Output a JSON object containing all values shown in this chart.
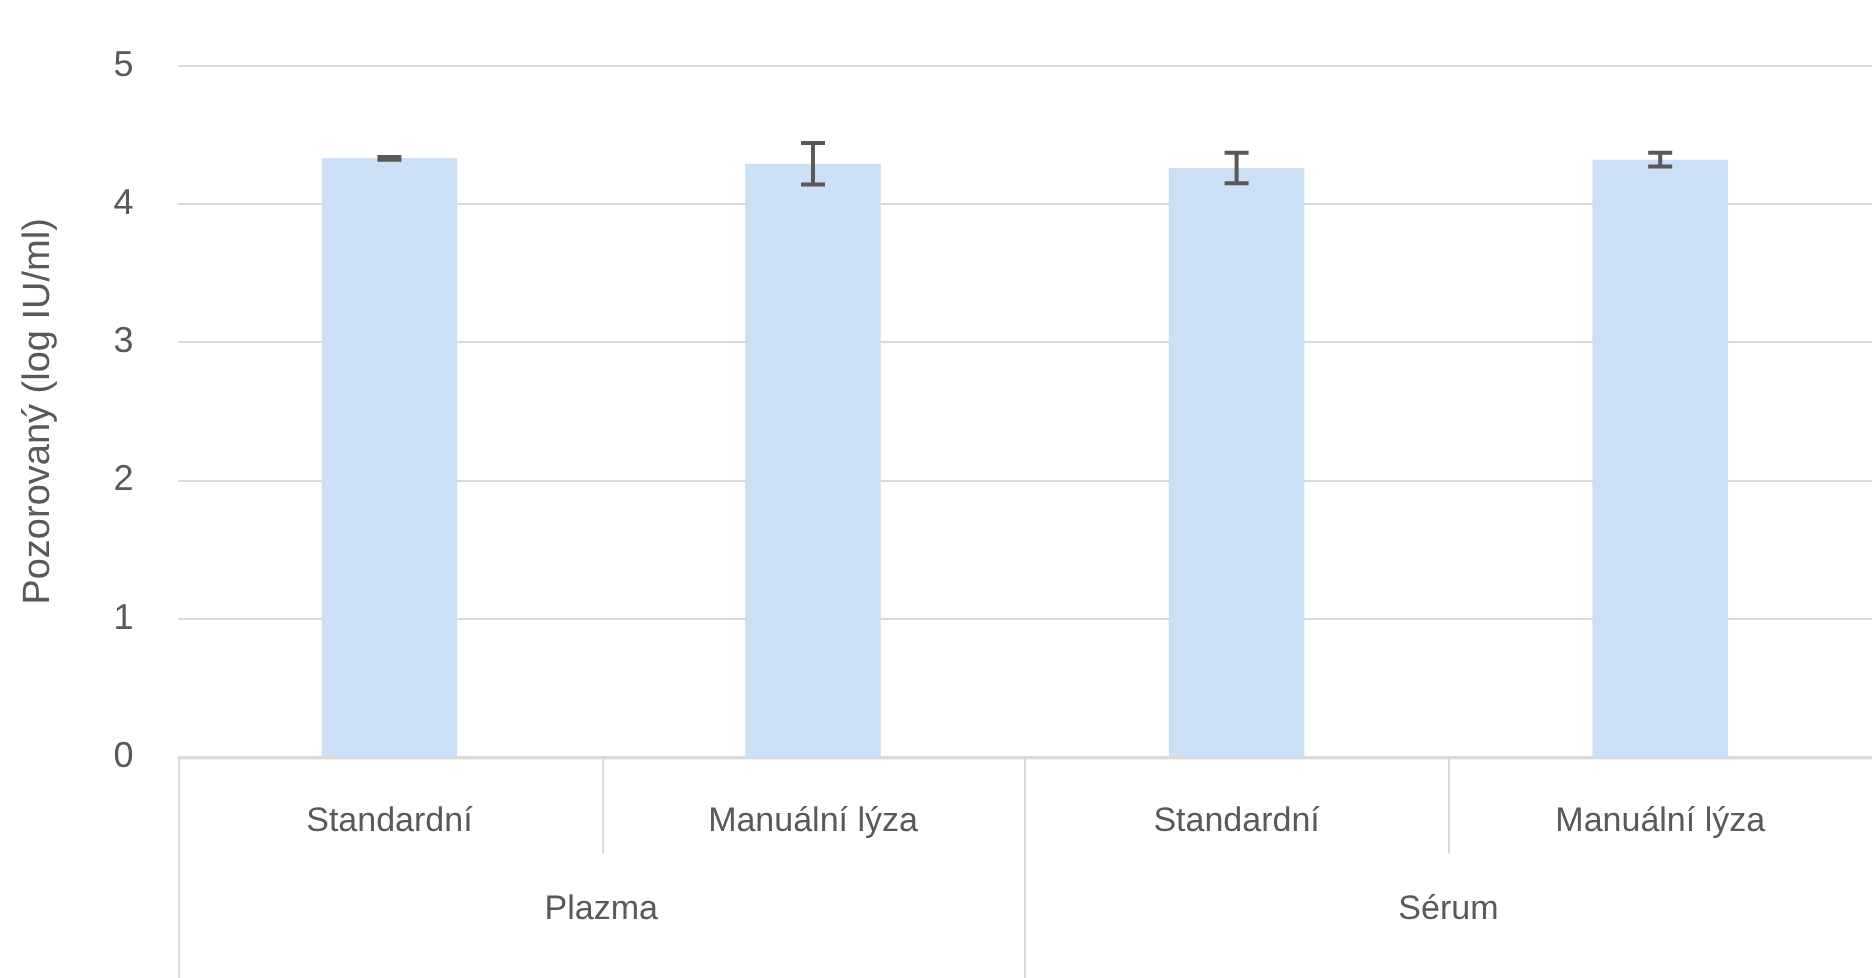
{
  "chart_data": {
    "type": "bar",
    "ylabel": "Pozorovaný (log IU/ml)",
    "categories": [
      "Standardní",
      "Manuální lýza",
      "Standardní",
      "Manuální lýza"
    ],
    "values": [
      4.33,
      4.29,
      4.26,
      4.32
    ],
    "errors": [
      0.01,
      0.15,
      0.11,
      0.05
    ],
    "color": "#cce0f5",
    "ylim": [
      0,
      5
    ],
    "yticks": [
      0,
      1,
      2,
      3,
      4,
      5
    ],
    "grid": "y",
    "annotations": [
      "Plazma",
      "Sérum"
    ]
  }
}
